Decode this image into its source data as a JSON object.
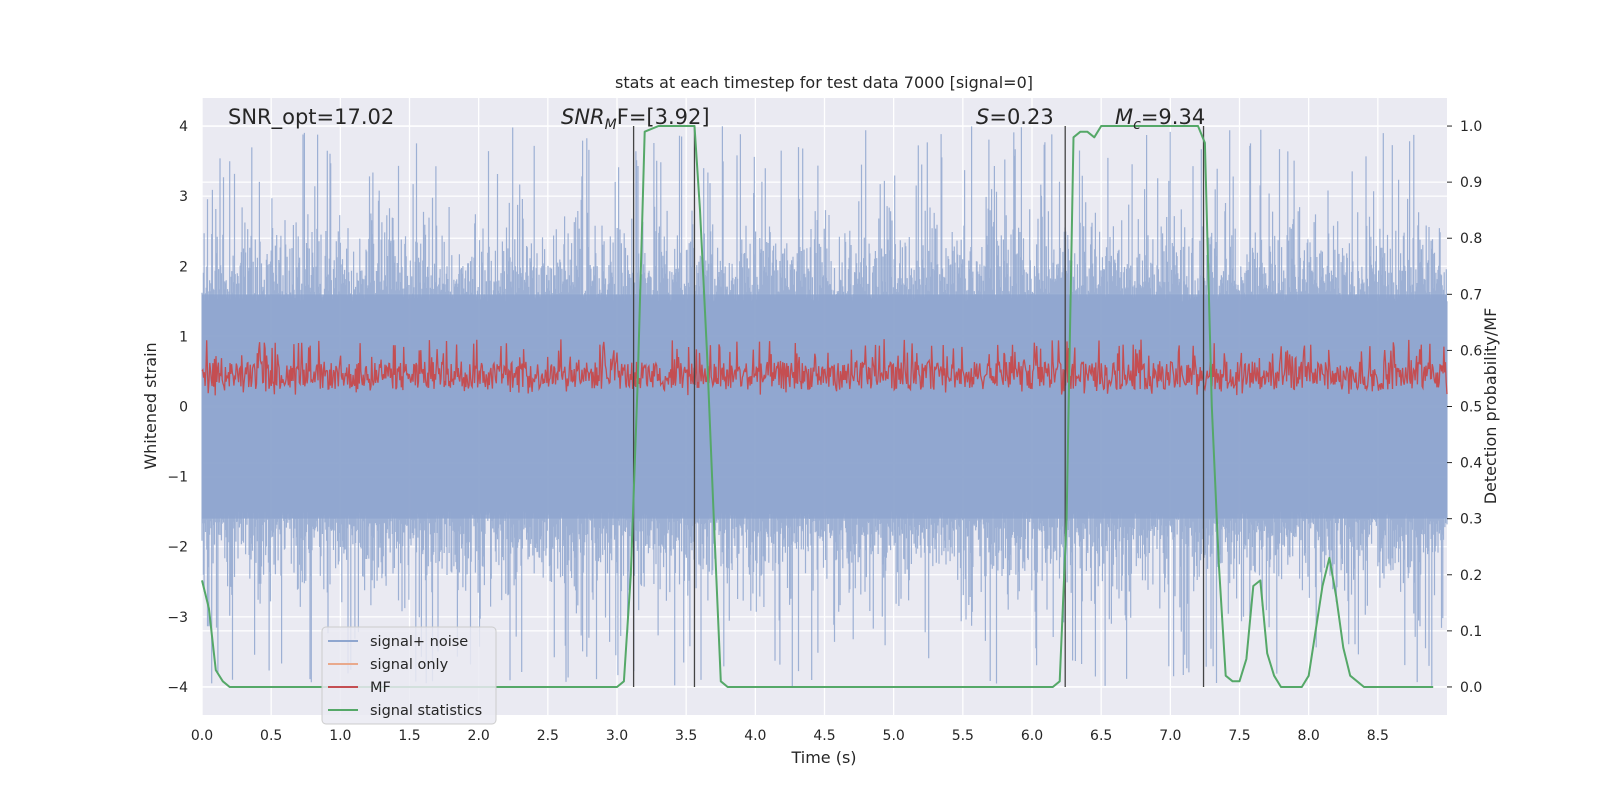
{
  "chart_data": {
    "type": "line",
    "title": "stats at each timestep for test data 7000 [signal=0]",
    "xlabel": "Time (s)",
    "ylabel": "Whitened strain",
    "y2label": "Detection probability/MF",
    "xlim": [
      0,
      9.0
    ],
    "ylim": [
      -4.4,
      4.4
    ],
    "y2lim": [
      -0.05,
      1.05
    ],
    "xticks": [
      "0.0",
      "0.5",
      "1.0",
      "1.5",
      "2.0",
      "2.5",
      "3.0",
      "3.5",
      "4.0",
      "4.5",
      "5.0",
      "5.5",
      "6.0",
      "6.5",
      "7.0",
      "7.5",
      "8.0",
      "8.5"
    ],
    "yticks": [
      "4",
      "3",
      "2",
      "1",
      "0",
      "−1",
      "−2",
      "−3",
      "−4"
    ],
    "y2ticks": [
      "1.0",
      "0.9",
      "0.8",
      "0.7",
      "0.6",
      "0.5",
      "0.4",
      "0.3",
      "0.2",
      "0.1",
      "0.0"
    ],
    "grid": true,
    "legend_position": "lower-left",
    "annotations": {
      "snr_opt": "SNR_opt=17.02",
      "snr_mf_main": "SNR",
      "snr_mf_sub": "M",
      "snr_mf_rest": "F=[3.92]",
      "s_var": "S",
      "s_rest": "=0.23",
      "mc_var": "M",
      "mc_sub": "c",
      "mc_rest": "=9.34"
    },
    "vlines": [
      3.12,
      3.56,
      6.24,
      7.24
    ],
    "series": [
      {
        "name": "signal+ noise",
        "color": "#8fa6cf",
        "description_values": "noise band approx -2 to 2 with peaks near +-4"
      },
      {
        "name": "signal only",
        "color": "#e9a98c"
      },
      {
        "name": "MF",
        "color": "#c44e52",
        "axis": "right",
        "range": [
          0.52,
          0.62
        ]
      },
      {
        "name": "signal statistics",
        "color": "#55a868",
        "axis": "right",
        "x": [
          0.0,
          0.05,
          0.1,
          0.15,
          0.2,
          0.3,
          1.0,
          2.0,
          2.8,
          3.0,
          3.05,
          3.1,
          3.15,
          3.2,
          3.3,
          3.4,
          3.5,
          3.56,
          3.6,
          3.65,
          3.7,
          3.75,
          3.8,
          4.0,
          5.0,
          6.0,
          6.15,
          6.2,
          6.25,
          6.3,
          6.35,
          6.4,
          6.45,
          6.5,
          6.6,
          6.8,
          7.0,
          7.1,
          7.2,
          7.25,
          7.3,
          7.35,
          7.4,
          7.45,
          7.5,
          7.55,
          7.6,
          7.65,
          7.7,
          7.75,
          7.8,
          7.85,
          7.9,
          7.95,
          8.0,
          8.05,
          8.1,
          8.15,
          8.2,
          8.25,
          8.3,
          8.35,
          8.4,
          8.5,
          8.6,
          8.9
        ],
        "values": [
          0.19,
          0.14,
          0.03,
          0.01,
          0.0,
          0.0,
          0.0,
          0.0,
          0.0,
          0.0,
          0.01,
          0.2,
          0.55,
          0.99,
          1.0,
          1.0,
          1.0,
          1.0,
          0.85,
          0.6,
          0.3,
          0.01,
          0.0,
          0.0,
          0.0,
          0.0,
          0.0,
          0.01,
          0.3,
          0.98,
          0.99,
          0.99,
          0.98,
          1.0,
          1.0,
          1.0,
          1.0,
          1.0,
          1.0,
          0.97,
          0.5,
          0.22,
          0.02,
          0.01,
          0.01,
          0.05,
          0.18,
          0.19,
          0.06,
          0.02,
          0.0,
          0.0,
          0.0,
          0.0,
          0.02,
          0.1,
          0.18,
          0.23,
          0.16,
          0.07,
          0.02,
          0.01,
          0.0,
          0.0,
          0.0,
          0.0
        ]
      }
    ]
  }
}
